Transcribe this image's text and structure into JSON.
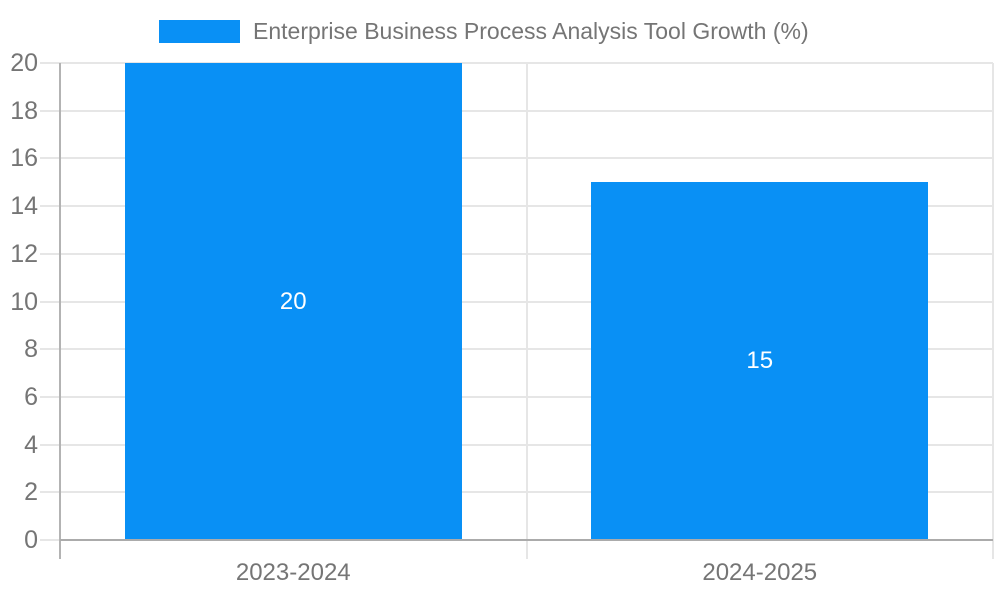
{
  "chart_data": {
    "type": "bar",
    "title": "",
    "legend": {
      "label": "Enterprise Business Process Analysis Tool Growth (%)",
      "position": "top"
    },
    "categories": [
      "2023-2024",
      "2024-2025"
    ],
    "values": [
      20,
      15
    ],
    "value_labels": [
      "20",
      "15"
    ],
    "value_labels_inside_bars": true,
    "xlabel": "",
    "ylabel": "",
    "ylim": [
      0,
      20
    ],
    "ytick_step": 2,
    "yticks": [
      0,
      2,
      4,
      6,
      8,
      10,
      12,
      14,
      16,
      18,
      20
    ],
    "grid": true,
    "colors": {
      "bar": "#0990f5",
      "value_label": "#ffffff",
      "axis_text": "#757575",
      "gridline": "#e6e6e6",
      "axis_line": "#b3b3b3",
      "baseline": "#ababab",
      "background": "#ffffff"
    }
  }
}
